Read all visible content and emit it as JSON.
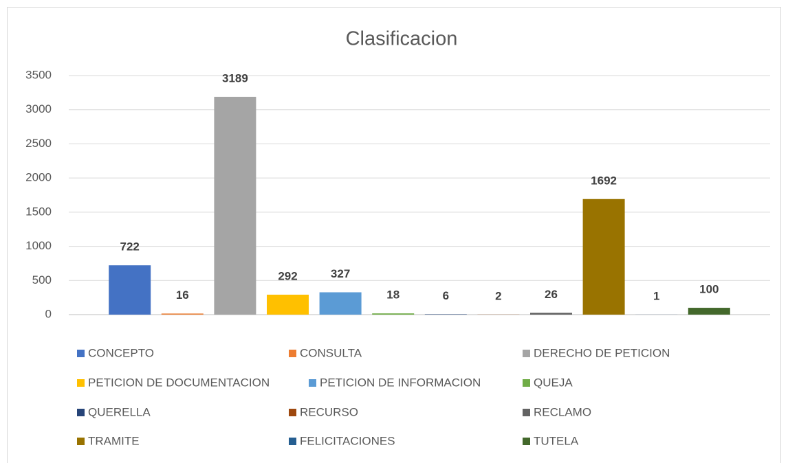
{
  "chart_data": {
    "type": "bar",
    "title": "Clasificacion",
    "categories": [
      null
    ],
    "series": [
      {
        "name": "CONCEPTO",
        "color": "#4472c4",
        "values": [
          722
        ]
      },
      {
        "name": "CONSULTA",
        "color": "#ed7d31",
        "values": [
          16
        ]
      },
      {
        "name": "DERECHO DE PETICION",
        "color": "#a5a5a5",
        "values": [
          3189
        ]
      },
      {
        "name": "PETICION DE DOCUMENTACION",
        "color": "#ffc000",
        "values": [
          292
        ]
      },
      {
        "name": "PETICION DE INFORMACION",
        "color": "#5b9bd5",
        "values": [
          327
        ]
      },
      {
        "name": "QUEJA",
        "color": "#70ad47",
        "values": [
          18
        ]
      },
      {
        "name": "QUERELLA",
        "color": "#264478",
        "values": [
          6
        ]
      },
      {
        "name": "RECURSO",
        "color": "#9e480e",
        "values": [
          2
        ]
      },
      {
        "name": "RECLAMO",
        "color": "#636363",
        "values": [
          26
        ]
      },
      {
        "name": "TRAMITE",
        "color": "#997300",
        "values": [
          1692
        ]
      },
      {
        "name": "FELICITACIONES",
        "color": "#255e91",
        "values": [
          1
        ]
      },
      {
        "name": "TUTELA",
        "color": "#43682b",
        "values": [
          100
        ]
      }
    ],
    "ylim": [
      0,
      3500
    ],
    "yticks": [
      0,
      500,
      1000,
      1500,
      2000,
      2500,
      3000,
      3500
    ],
    "grid": true
  }
}
